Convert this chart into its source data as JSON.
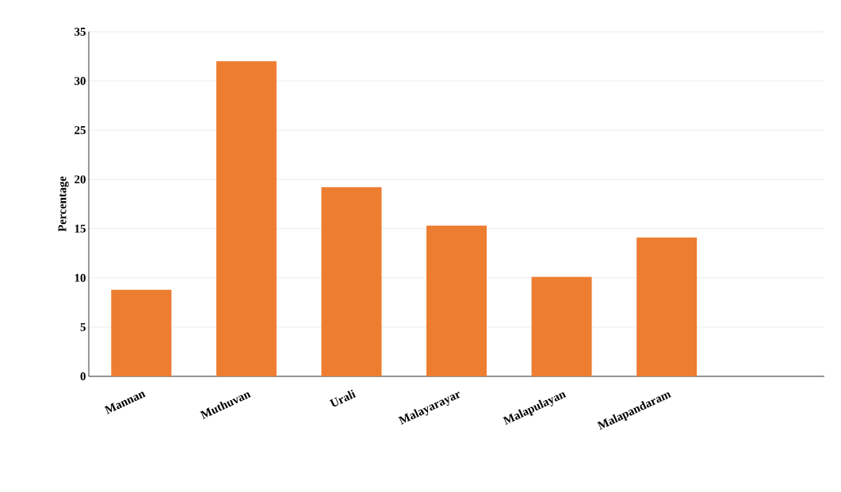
{
  "chart_data": {
    "type": "bar",
    "ylabel": "Percentage",
    "categories": [
      "Mannan",
      "Muthuvan",
      "Urali",
      "Malayarayar",
      "Malapulayan",
      "Malapandaram",
      null
    ],
    "values": [
      8.8,
      32.0,
      19.2,
      15.3,
      10.1,
      14.1,
      null
    ],
    "color": "#ed7d31",
    "ylim": [
      0,
      35
    ],
    "yticks": [
      0,
      5,
      10,
      15,
      20,
      25,
      30,
      35
    ],
    "grid": "y"
  }
}
